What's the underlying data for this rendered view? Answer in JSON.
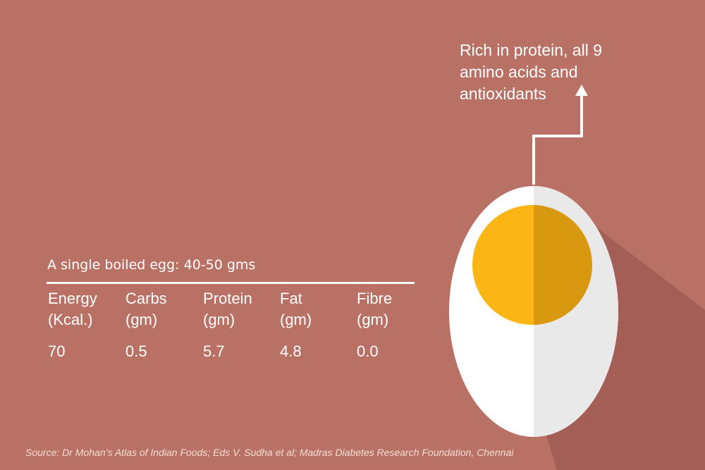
{
  "callout": {
    "lines": [
      "Rich in protein, all 9",
      "amino acids and",
      "antioxidants"
    ]
  },
  "headline": "A single boiled egg: 40-50 gms",
  "nutrition": [
    {
      "label": "Energy",
      "unit": "(Kcal.)",
      "value": "70"
    },
    {
      "label": "Carbs",
      "unit": "(gm)",
      "value": "0.5"
    },
    {
      "label": "Protein",
      "unit": "(gm)",
      "value": "5.7"
    },
    {
      "label": "Fat",
      "unit": "(gm)",
      "value": "4.8"
    },
    {
      "label": "Fibre",
      "unit": "(gm)",
      "value": "0.0"
    }
  ],
  "source": "Source:  Dr Mohan’s Atlas of Indian Foods; Eds V. Sudha et al; Madras Diabetes Research Foundation, Chennai",
  "colors": {
    "background": "#ba7165",
    "egg_white": "#ffffff",
    "egg_white_shade": "#e9e9e9",
    "yolk": "#fbb615",
    "yolk_shade": "#d8980f",
    "shadow": "#a35f55"
  }
}
